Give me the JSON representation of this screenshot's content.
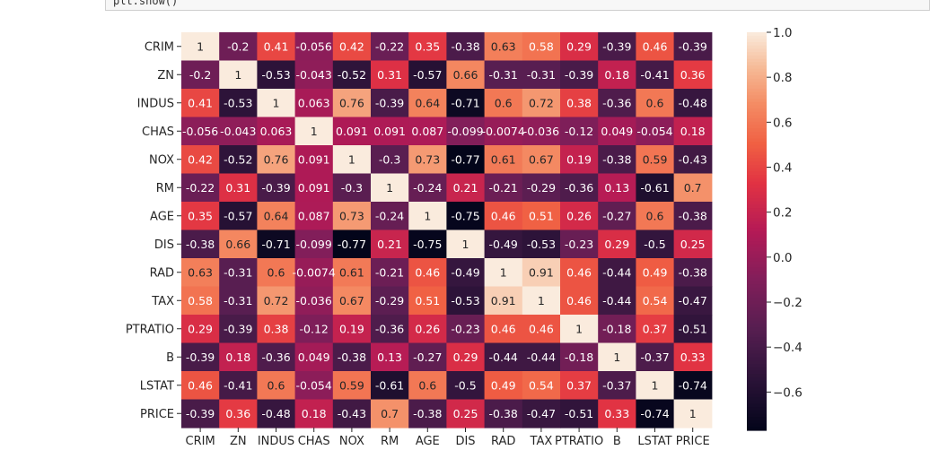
{
  "notebook": {
    "code_line": "plt.show()"
  },
  "chart_data": {
    "type": "heatmap",
    "title": "",
    "xlabel": "",
    "ylabel": "",
    "x_labels": [
      "CRIM",
      "ZN",
      "INDUS",
      "CHAS",
      "NOX",
      "RM",
      "AGE",
      "DIS",
      "RAD",
      "TAX",
      "PTRATIO",
      "B",
      "LSTAT",
      "PRICE"
    ],
    "y_labels": [
      "CRIM",
      "ZN",
      "INDUS",
      "CHAS",
      "NOX",
      "RM",
      "AGE",
      "DIS",
      "RAD",
      "TAX",
      "PTRATIO",
      "B",
      "LSTAT",
      "PRICE"
    ],
    "values": [
      [
        1,
        -0.2,
        0.41,
        -0.056,
        0.42,
        -0.22,
        0.35,
        -0.38,
        0.63,
        0.58,
        0.29,
        -0.39,
        0.46,
        -0.39
      ],
      [
        -0.2,
        1,
        -0.53,
        -0.043,
        -0.52,
        0.31,
        -0.57,
        0.66,
        -0.31,
        -0.31,
        -0.39,
        0.18,
        -0.41,
        0.36
      ],
      [
        0.41,
        -0.53,
        1,
        0.063,
        0.76,
        -0.39,
        0.64,
        -0.71,
        0.6,
        0.72,
        0.38,
        -0.36,
        0.6,
        -0.48
      ],
      [
        -0.056,
        -0.043,
        0.063,
        1,
        0.091,
        0.091,
        0.087,
        -0.099,
        -0.0074,
        -0.036,
        -0.12,
        0.049,
        -0.054,
        0.18
      ],
      [
        0.42,
        -0.52,
        0.76,
        0.091,
        1,
        -0.3,
        0.73,
        -0.77,
        0.61,
        0.67,
        0.19,
        -0.38,
        0.59,
        -0.43
      ],
      [
        -0.22,
        0.31,
        -0.39,
        0.091,
        -0.3,
        1,
        -0.24,
        0.21,
        -0.21,
        -0.29,
        -0.36,
        0.13,
        -0.61,
        0.7
      ],
      [
        0.35,
        -0.57,
        0.64,
        0.087,
        0.73,
        -0.24,
        1,
        -0.75,
        0.46,
        0.51,
        0.26,
        -0.27,
        0.6,
        -0.38
      ],
      [
        -0.38,
        0.66,
        -0.71,
        -0.099,
        -0.77,
        0.21,
        -0.75,
        1,
        -0.49,
        -0.53,
        -0.23,
        0.29,
        -0.5,
        0.25
      ],
      [
        0.63,
        -0.31,
        0.6,
        -0.0074,
        0.61,
        -0.21,
        0.46,
        -0.49,
        1,
        0.91,
        0.46,
        -0.44,
        0.49,
        -0.38
      ],
      [
        0.58,
        -0.31,
        0.72,
        -0.036,
        0.67,
        -0.29,
        0.51,
        -0.53,
        0.91,
        1,
        0.46,
        -0.44,
        0.54,
        -0.47
      ],
      [
        0.29,
        -0.39,
        0.38,
        -0.12,
        0.19,
        -0.36,
        0.26,
        -0.23,
        0.46,
        0.46,
        1,
        -0.18,
        0.37,
        -0.51
      ],
      [
        -0.39,
        0.18,
        -0.36,
        0.049,
        -0.38,
        0.13,
        -0.27,
        0.29,
        -0.44,
        -0.44,
        -0.18,
        1,
        -0.37,
        0.33
      ],
      [
        0.46,
        -0.41,
        0.6,
        -0.054,
        0.59,
        -0.61,
        0.6,
        -0.5,
        0.49,
        0.54,
        0.37,
        -0.37,
        1,
        -0.74
      ],
      [
        -0.39,
        0.36,
        -0.48,
        0.18,
        -0.43,
        0.7,
        -0.38,
        0.25,
        -0.38,
        -0.47,
        -0.51,
        0.33,
        -0.74,
        1
      ]
    ],
    "color_range": [
      -0.77,
      1.0
    ],
    "colormap": "rocket",
    "annotations": true,
    "grid": false,
    "legend": "colorbar-right",
    "colorbar_ticks": [
      1.0,
      0.8,
      0.6,
      0.4,
      0.2,
      0.0,
      -0.2,
      -0.4,
      -0.6
    ],
    "colorbar_tick_labels": [
      "1.0",
      "0.8",
      "0.6",
      "0.4",
      "0.2",
      "0.0",
      "−0.2",
      "−0.4",
      "−0.6"
    ]
  }
}
